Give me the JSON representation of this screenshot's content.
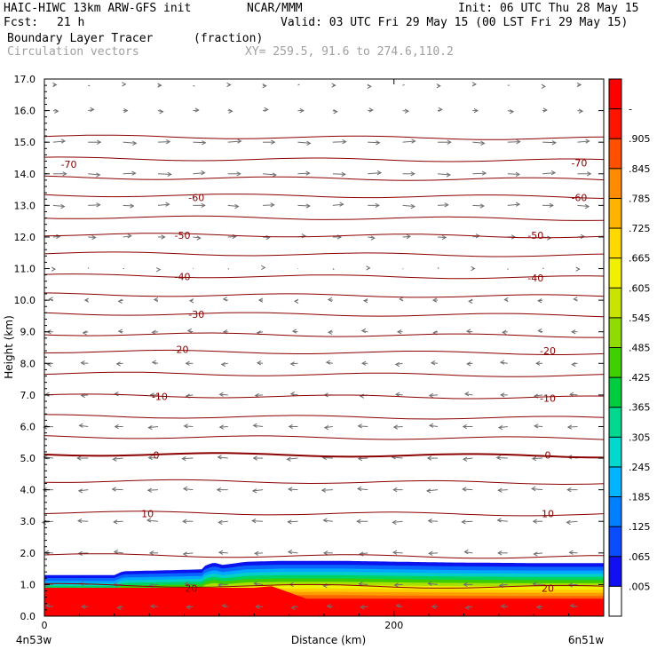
{
  "header": {
    "model": "HAIC-HIWC 13km ARW-GFS init",
    "org": "NCAR/MMM",
    "init": "Init: 06 UTC Thu 28 May 15",
    "fcst_label": "Fcst:",
    "fcst_value": "21 h",
    "valid": "Valid: 03 UTC Fri 29 May 15 (00 LST Fri 29 May 15)",
    "field": "Boundary Layer Tracer",
    "field_unit": "(fraction)",
    "vectors": "Circulation vectors",
    "xy": "XY= 259.5, 91.6 to 274.6,110.2"
  },
  "chart_data": {
    "type": "heatmap",
    "xlabel": "Distance (km)",
    "ylabel": "Height (km)",
    "xlim": [
      0,
      320
    ],
    "ylim": [
      0,
      17
    ],
    "x_ticks": [
      0,
      200
    ],
    "x_tick_labels": [
      "0",
      "200"
    ],
    "x_end_labels": {
      "left": "4n53w",
      "right": "6n51w"
    },
    "y_ticks": [
      0,
      1,
      2,
      3,
      4,
      5,
      6,
      7,
      8,
      9,
      10,
      11,
      12,
      13,
      14,
      15,
      16,
      17
    ],
    "y_tick_labels": [
      "0.0",
      "1.0",
      "2.0",
      "3.0",
      "4.0",
      "5.0",
      "6.0",
      "7.0",
      "8.0",
      "9.0",
      "10.0",
      "11.0",
      "12.0",
      "13.0",
      "14.0",
      "15.0",
      "16.0",
      "17.0"
    ],
    "colorbar": {
      "labels": [
        ".005",
        ".065",
        ".125",
        ".185",
        ".245",
        ".305",
        ".365",
        ".425",
        ".485",
        ".545",
        ".605",
        ".665",
        ".725",
        ".785",
        ".845",
        ".905",
        "-"
      ],
      "colors": [
        "#ffffff",
        "#1010f0",
        "#0a4cff",
        "#0080ff",
        "#00b4ff",
        "#00d8d0",
        "#00d890",
        "#00cc40",
        "#40d000",
        "#90dc00",
        "#c8e400",
        "#f0f000",
        "#ffd800",
        "#ffb400",
        "#ff8c00",
        "#ff5000",
        "#ff1400",
        "#ff0000"
      ]
    },
    "tracer_field": {
      "top_height_km": [
        [
          0,
          1.3
        ],
        [
          40,
          1.3
        ],
        [
          45,
          1.42
        ],
        [
          60,
          1.44
        ],
        [
          90,
          1.48
        ],
        [
          92,
          1.6
        ],
        [
          97,
          1.7
        ],
        [
          102,
          1.62
        ],
        [
          115,
          1.72
        ],
        [
          135,
          1.75
        ],
        [
          170,
          1.75
        ],
        [
          230,
          1.7
        ],
        [
          280,
          1.68
        ],
        [
          320,
          1.68
        ]
      ],
      "red_top_km": [
        [
          0,
          0.9
        ],
        [
          120,
          0.9
        ],
        [
          130,
          0.95
        ],
        [
          150,
          0.55
        ],
        [
          200,
          0.55
        ],
        [
          320,
          0.55
        ]
      ]
    },
    "temperature_contours": {
      "unit_label": "",
      "levels": [
        -70,
        -60,
        -50,
        -40,
        -30,
        -20,
        -10,
        0,
        10,
        20
      ],
      "labels": [
        {
          "value": "-70",
          "x": 14,
          "y": 14.3
        },
        {
          "value": "-70",
          "x": 306,
          "y": 14.35
        },
        {
          "value": "-60",
          "x": 87,
          "y": 13.25
        },
        {
          "value": "-60",
          "x": 306,
          "y": 13.25
        },
        {
          "value": "-50",
          "x": 79,
          "y": 12.05
        },
        {
          "value": "-50",
          "x": 281,
          "y": 12.05
        },
        {
          "value": "-40",
          "x": 79,
          "y": 10.75
        },
        {
          "value": "-40",
          "x": 281,
          "y": 10.7
        },
        {
          "value": "-30",
          "x": 87,
          "y": 9.55
        },
        {
          "value": "-20",
          "x": 78,
          "y": 8.45
        },
        {
          "value": "-20",
          "x": 288,
          "y": 8.4
        },
        {
          "value": "-10",
          "x": 66,
          "y": 6.95
        },
        {
          "value": "-10",
          "x": 288,
          "y": 6.9
        },
        {
          "value": "0",
          "x": 64,
          "y": 5.1
        },
        {
          "value": "0",
          "x": 288,
          "y": 5.1
        },
        {
          "value": "10",
          "x": 59,
          "y": 3.25
        },
        {
          "value": "10",
          "x": 288,
          "y": 3.25
        },
        {
          "value": "20",
          "x": 84,
          "y": 0.88
        },
        {
          "value": "20",
          "x": 288,
          "y": 0.88
        }
      ],
      "isotherm_heights_km": [
        15.15,
        14.45,
        13.85,
        13.3,
        12.6,
        12.05,
        11.45,
        10.75,
        10.15,
        9.55,
        8.9,
        8.35,
        7.65,
        6.95,
        6.3,
        5.65,
        5.1,
        4.25,
        3.25,
        1.9,
        0.95
      ]
    },
    "vectors": {
      "x_positions_km": [
        5,
        25,
        45,
        65,
        85,
        105,
        125,
        145,
        165,
        185,
        205,
        225,
        245,
        265,
        285,
        305
      ],
      "wind_profile": [
        {
          "z": 0.3,
          "u": -0.5
        },
        {
          "z": 1.0,
          "u": -0.7
        },
        {
          "z": 2.0,
          "u": -0.7
        },
        {
          "z": 3.0,
          "u": -0.8
        },
        {
          "z": 4.0,
          "u": -0.8
        },
        {
          "z": 5.0,
          "u": -0.8
        },
        {
          "z": 6.0,
          "u": -0.7
        },
        {
          "z": 7.0,
          "u": -0.6
        },
        {
          "z": 8.0,
          "u": -0.5
        },
        {
          "z": 9.0,
          "u": -0.4
        },
        {
          "z": 10.0,
          "u": -0.3
        },
        {
          "z": 11.0,
          "u": 0.1
        },
        {
          "z": 12.0,
          "u": 0.6
        },
        {
          "z": 13.0,
          "u": 0.9
        },
        {
          "z": 14.0,
          "u": 1.0
        },
        {
          "z": 15.0,
          "u": 1.0
        },
        {
          "z": 16.0,
          "u": 0.4
        },
        {
          "z": 16.8,
          "u": 0.2
        }
      ]
    }
  }
}
